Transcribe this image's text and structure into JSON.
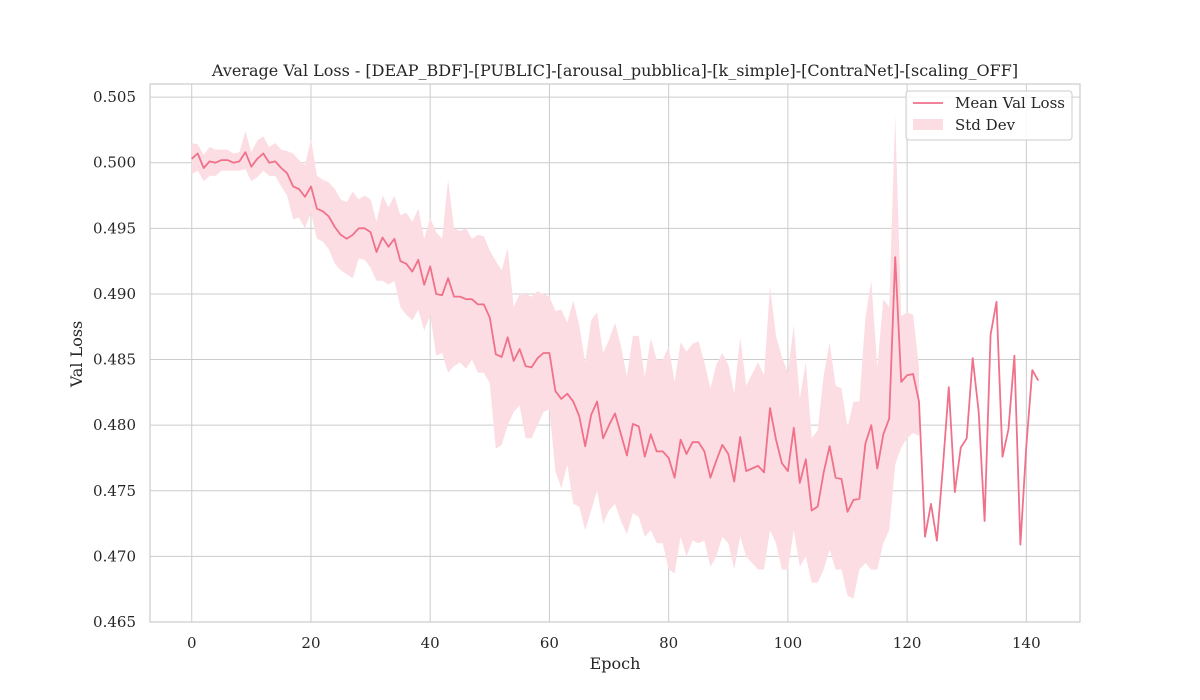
{
  "chart_data": {
    "type": "line",
    "title": "Average Val Loss - [DEAP_BDF]-[PUBLIC]-[arousal_pubblica]-[k_simple]-[ContraNet]-[scaling_OFF]",
    "xlabel": "Epoch",
    "ylabel": "Val Loss",
    "xlim": [
      -7,
      149
    ],
    "ylim": [
      0.465,
      0.506
    ],
    "xticks": [
      0,
      20,
      40,
      60,
      80,
      100,
      120,
      140
    ],
    "yticks": [
      0.465,
      0.47,
      0.475,
      0.48,
      0.485,
      0.49,
      0.495,
      0.5,
      0.505
    ],
    "grid": true,
    "legend_position": "top-right",
    "colors": {
      "line": "#f0718a",
      "band": "#fcdde3",
      "grid": "#cccccc",
      "axes": "#cccccc"
    },
    "series": [
      {
        "name": "Mean Val Loss",
        "x": [
          0,
          1,
          2,
          3,
          4,
          5,
          6,
          7,
          8,
          9,
          10,
          11,
          12,
          13,
          14,
          15,
          16,
          17,
          18,
          19,
          20,
          21,
          22,
          23,
          24,
          25,
          26,
          27,
          28,
          29,
          30,
          31,
          32,
          33,
          34,
          35,
          36,
          37,
          38,
          39,
          40,
          41,
          42,
          43,
          44,
          45,
          46,
          47,
          48,
          49,
          50,
          51,
          52,
          53,
          54,
          55,
          56,
          57,
          58,
          59,
          60,
          61,
          62,
          63,
          64,
          65,
          66,
          67,
          68,
          69,
          70,
          71,
          72,
          73,
          74,
          75,
          76,
          77,
          78,
          79,
          80,
          81,
          82,
          83,
          84,
          85,
          86,
          87,
          88,
          89,
          90,
          91,
          92,
          93,
          94,
          95,
          96,
          97,
          98,
          99,
          100,
          101,
          102,
          103,
          104,
          105,
          106,
          107,
          108,
          109,
          110,
          111,
          112,
          113,
          114,
          115,
          116,
          117,
          118,
          119,
          120,
          121,
          122,
          123,
          124,
          125,
          126,
          127,
          128,
          129,
          130,
          131,
          132,
          133,
          134,
          135,
          136,
          137,
          138,
          139,
          140,
          141,
          142
        ],
        "values": [
          0.5003,
          0.5007,
          0.4996,
          0.5001,
          0.5,
          0.5002,
          0.5002,
          0.5,
          0.5001,
          0.5008,
          0.4997,
          0.5003,
          0.5007,
          0.5,
          0.5001,
          0.4996,
          0.4992,
          0.4982,
          0.498,
          0.4974,
          0.4982,
          0.4965,
          0.4963,
          0.4959,
          0.4951,
          0.4945,
          0.4942,
          0.4945,
          0.495,
          0.495,
          0.4947,
          0.4932,
          0.4943,
          0.4936,
          0.4942,
          0.4925,
          0.4923,
          0.4917,
          0.4926,
          0.4907,
          0.4921,
          0.49,
          0.4899,
          0.4912,
          0.4898,
          0.4898,
          0.4896,
          0.4896,
          0.4892,
          0.4892,
          0.4882,
          0.4854,
          0.4852,
          0.4867,
          0.4849,
          0.4858,
          0.4845,
          0.4844,
          0.4851,
          0.4855,
          0.4855,
          0.4826,
          0.482,
          0.4824,
          0.4818,
          0.4807,
          0.4784,
          0.4808,
          0.4818,
          0.479,
          0.48,
          0.4809,
          0.4793,
          0.4777,
          0.4801,
          0.4799,
          0.4776,
          0.4793,
          0.478,
          0.478,
          0.4775,
          0.476,
          0.4789,
          0.4778,
          0.4787,
          0.4787,
          0.478,
          0.476,
          0.4773,
          0.4785,
          0.4778,
          0.4757,
          0.4791,
          0.4765,
          0.4767,
          0.4769,
          0.4764,
          0.4813,
          0.4789,
          0.4771,
          0.4765,
          0.4798,
          0.4756,
          0.4774,
          0.4735,
          0.4738,
          0.4764,
          0.4784,
          0.476,
          0.4759,
          0.4734,
          0.4743,
          0.4744,
          0.4786,
          0.48,
          0.4767,
          0.4793,
          0.4805,
          0.4928,
          0.4833,
          0.4838,
          0.4839,
          0.4818,
          0.4715,
          0.474,
          0.4712,
          0.4768,
          0.4829,
          0.4749,
          0.4783,
          0.479,
          0.4851,
          0.481,
          0.4727,
          0.4869,
          0.4894,
          0.4776,
          0.4797,
          0.4853,
          0.4709,
          0.4784,
          0.4842,
          0.4834
        ]
      },
      {
        "name": "Std Dev",
        "x": [
          0,
          1,
          2,
          3,
          4,
          5,
          6,
          7,
          8,
          9,
          10,
          11,
          12,
          13,
          14,
          15,
          16,
          17,
          18,
          19,
          20,
          21,
          22,
          23,
          24,
          25,
          26,
          27,
          28,
          29,
          30,
          31,
          32,
          33,
          34,
          35,
          36,
          37,
          38,
          39,
          40,
          41,
          42,
          43,
          44,
          45,
          46,
          47,
          48,
          49,
          50,
          51,
          52,
          53,
          54,
          55,
          56,
          57,
          58,
          59,
          60,
          61,
          62,
          63,
          64,
          65,
          66,
          67,
          68,
          69,
          70,
          71,
          72,
          73,
          74,
          75,
          76,
          77,
          78,
          79,
          80,
          81,
          82,
          83,
          84,
          85,
          86,
          87,
          88,
          89,
          90,
          91,
          92,
          93,
          94,
          95,
          96,
          97,
          98,
          99,
          100,
          101,
          102,
          103,
          104,
          105,
          106,
          107,
          108,
          109,
          110,
          111,
          112,
          113,
          114,
          115,
          116,
          117,
          118,
          119,
          120,
          121,
          122
        ],
        "lower": [
          0.4991,
          0.4994,
          0.4986,
          0.499,
          0.499,
          0.4994,
          0.4994,
          0.4994,
          0.4994,
          0.4995,
          0.4986,
          0.4989,
          0.4994,
          0.499,
          0.499,
          0.4982,
          0.4975,
          0.4957,
          0.4958,
          0.495,
          0.4962,
          0.4942,
          0.494,
          0.4934,
          0.4923,
          0.4918,
          0.4915,
          0.4912,
          0.4927,
          0.4926,
          0.492,
          0.491,
          0.491,
          0.4907,
          0.491,
          0.489,
          0.4884,
          0.488,
          0.4888,
          0.4872,
          0.4884,
          0.4853,
          0.4855,
          0.484,
          0.4845,
          0.4848,
          0.4843,
          0.485,
          0.484,
          0.484,
          0.4832,
          0.4782,
          0.4785,
          0.48,
          0.481,
          0.4815,
          0.479,
          0.479,
          0.48,
          0.481,
          0.4812,
          0.4765,
          0.4752,
          0.477,
          0.474,
          0.4738,
          0.472,
          0.4735,
          0.475,
          0.4725,
          0.4735,
          0.474,
          0.4727,
          0.4717,
          0.4733,
          0.473,
          0.4715,
          0.472,
          0.471,
          0.471,
          0.469,
          0.4687,
          0.4715,
          0.47,
          0.4712,
          0.471,
          0.4712,
          0.4692,
          0.47,
          0.4715,
          0.471,
          0.469,
          0.4715,
          0.47,
          0.4695,
          0.469,
          0.469,
          0.472,
          0.471,
          0.469,
          0.469,
          0.472,
          0.4692,
          0.47,
          0.468,
          0.468,
          0.469,
          0.4705,
          0.469,
          0.469,
          0.467,
          0.4668,
          0.469,
          0.4695,
          0.469,
          0.469,
          0.471,
          0.472,
          0.477,
          0.4783,
          0.479,
          0.4794,
          0.4792
        ],
        "upper": [
          0.5015,
          0.5014,
          0.5006,
          0.5012,
          0.501,
          0.501,
          0.501,
          0.5007,
          0.5008,
          0.5024,
          0.5008,
          0.5017,
          0.502,
          0.5012,
          0.5015,
          0.501,
          0.5009,
          0.5007,
          0.5002,
          0.4998,
          0.5018,
          0.499,
          0.4987,
          0.4985,
          0.498,
          0.4972,
          0.497,
          0.4978,
          0.4972,
          0.4975,
          0.4972,
          0.4955,
          0.4975,
          0.4966,
          0.4975,
          0.496,
          0.4962,
          0.4955,
          0.4965,
          0.4942,
          0.4958,
          0.4947,
          0.4942,
          0.4987,
          0.495,
          0.4948,
          0.495,
          0.4942,
          0.4945,
          0.4944,
          0.4933,
          0.4925,
          0.4918,
          0.4935,
          0.489,
          0.49,
          0.49,
          0.4898,
          0.4902,
          0.49,
          0.4898,
          0.4887,
          0.4888,
          0.4878,
          0.4895,
          0.4876,
          0.4848,
          0.488,
          0.4886,
          0.4855,
          0.4865,
          0.4878,
          0.486,
          0.4837,
          0.4868,
          0.4868,
          0.4837,
          0.4866,
          0.485,
          0.485,
          0.486,
          0.4833,
          0.4863,
          0.4856,
          0.4862,
          0.4864,
          0.4848,
          0.4828,
          0.4846,
          0.4855,
          0.4846,
          0.4824,
          0.4867,
          0.483,
          0.4839,
          0.4848,
          0.4838,
          0.4906,
          0.4868,
          0.4852,
          0.484,
          0.4876,
          0.482,
          0.4848,
          0.479,
          0.4796,
          0.4838,
          0.4863,
          0.483,
          0.4828,
          0.4798,
          0.4818,
          0.4818,
          0.4882,
          0.491,
          0.4844,
          0.4896,
          0.489,
          0.5036,
          0.4883,
          0.4886,
          0.4884,
          0.4844
        ]
      }
    ]
  }
}
